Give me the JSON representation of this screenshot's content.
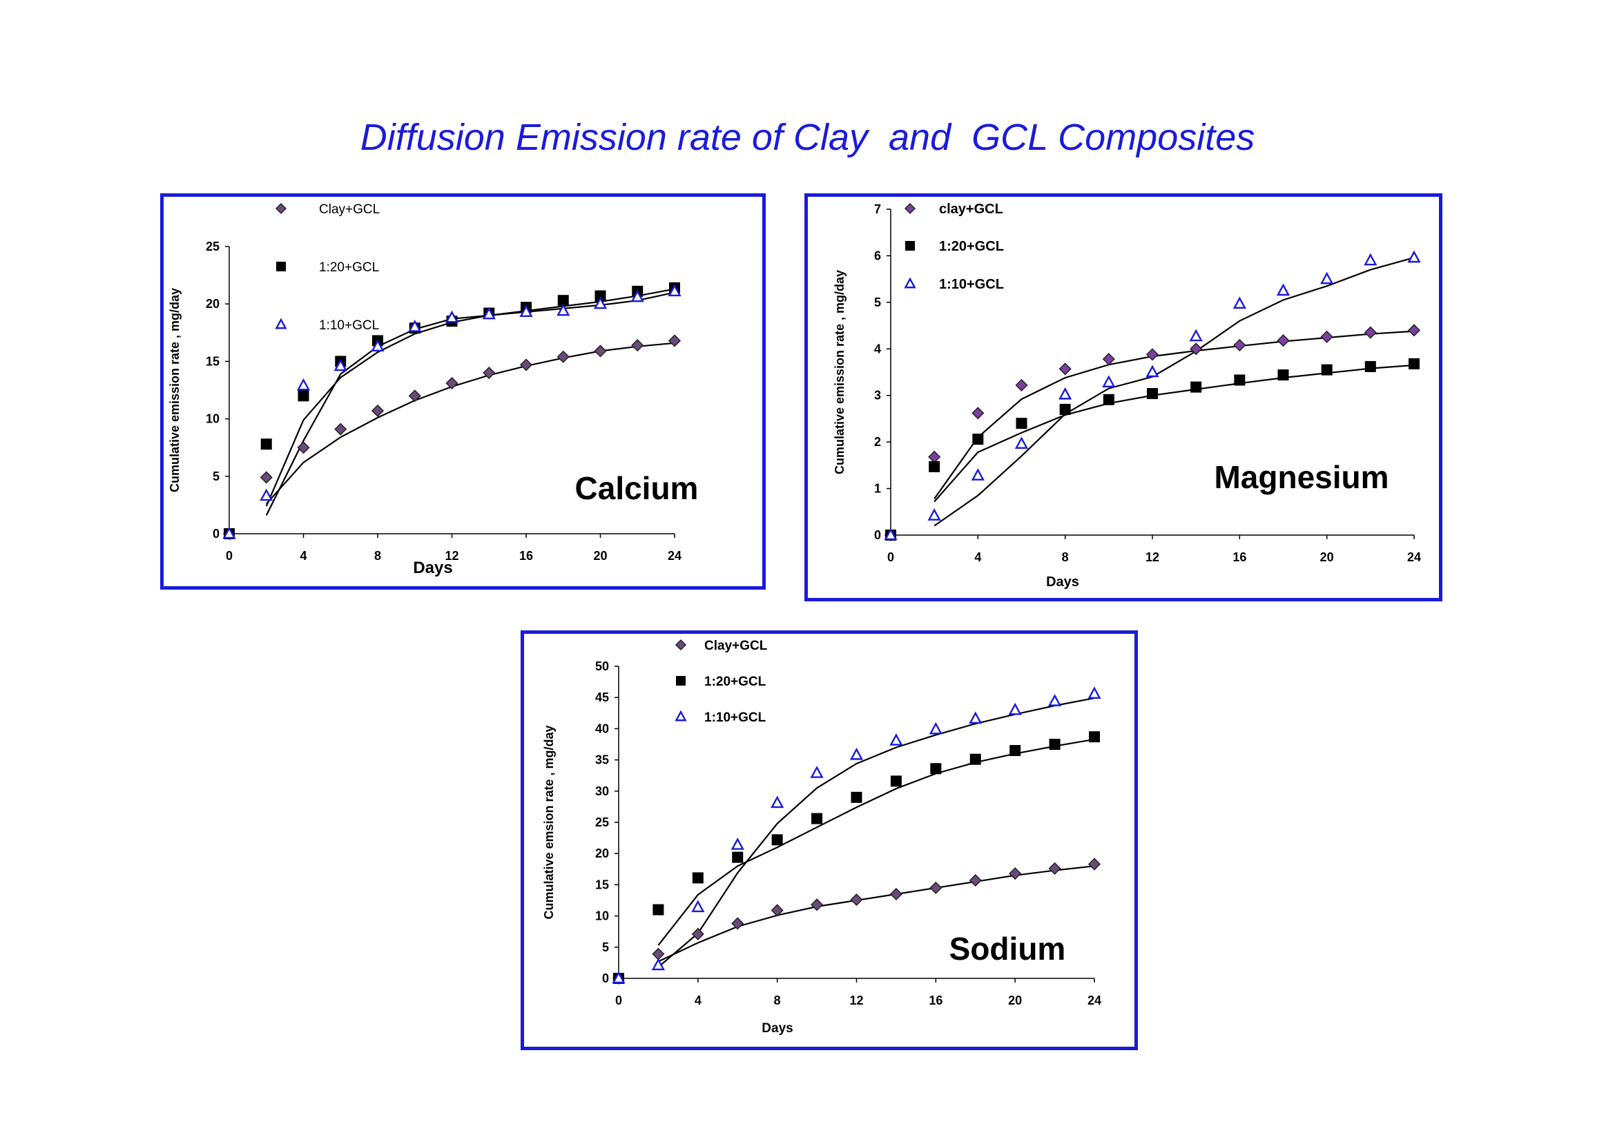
{
  "title": "Diffusion Emission rate of Clay  and  GCL Composites",
  "chart_data": [
    {
      "type": "scatter",
      "name": "Calcium",
      "xlabel": "Days",
      "ylabel": "Cumulative emission rate , mg/day",
      "xlim": [
        0,
        24
      ],
      "ylim": [
        0,
        25
      ],
      "xticks": [
        0,
        4,
        8,
        12,
        16,
        20,
        24
      ],
      "yticks": [
        0,
        5,
        10,
        15,
        20,
        25
      ],
      "legend": "top-left",
      "series": [
        {
          "name": "Clay+GCL",
          "marker": "diamond",
          "color": "#6a4a7a",
          "x": [
            0,
            2,
            4,
            6,
            8,
            10,
            12,
            14,
            16,
            18,
            20,
            22,
            24
          ],
          "y": [
            0,
            4.9,
            7.5,
            9.1,
            10.7,
            12.0,
            13.1,
            14.0,
            14.7,
            15.4,
            15.9,
            16.4,
            16.8
          ],
          "fit": [
            [
              2,
              2.6
            ],
            [
              4,
              6.2
            ],
            [
              6,
              8.4
            ],
            [
              8,
              10.1
            ],
            [
              10,
              11.6
            ],
            [
              12,
              12.8
            ],
            [
              14,
              13.8
            ],
            [
              16,
              14.6
            ],
            [
              18,
              15.3
            ],
            [
              20,
              15.9
            ],
            [
              22,
              16.3
            ],
            [
              24,
              16.6
            ]
          ]
        },
        {
          "name": "1:20+GCL",
          "marker": "square",
          "color": "#000000",
          "x": [
            0,
            2,
            4,
            6,
            8,
            10,
            12,
            14,
            16,
            18,
            20,
            22,
            24
          ],
          "y": [
            0,
            7.8,
            12.0,
            15.0,
            16.8,
            17.9,
            18.5,
            19.2,
            19.7,
            20.3,
            20.7,
            21.1,
            21.4
          ],
          "fit": [
            [
              2,
              2.4
            ],
            [
              4,
              9.9
            ],
            [
              6,
              13.6
            ],
            [
              8,
              15.8
            ],
            [
              10,
              17.4
            ],
            [
              12,
              18.4
            ],
            [
              14,
              19.0
            ],
            [
              16,
              19.4
            ],
            [
              18,
              19.8
            ],
            [
              20,
              20.2
            ],
            [
              22,
              20.7
            ],
            [
              24,
              21.3
            ]
          ]
        },
        {
          "name": "1:10+GCL",
          "marker": "triangle",
          "color": "#1a1adc",
          "x": [
            0,
            2,
            4,
            6,
            8,
            10,
            12,
            14,
            16,
            18,
            20,
            22,
            24
          ],
          "y": [
            0,
            3.3,
            12.9,
            14.6,
            16.3,
            18.0,
            18.8,
            19.1,
            19.3,
            19.4,
            20.0,
            20.6,
            21.1
          ],
          "fit": [
            [
              2,
              1.6
            ],
            [
              4,
              8.1
            ],
            [
              6,
              13.9
            ],
            [
              8,
              16.3
            ],
            [
              10,
              17.8
            ],
            [
              12,
              18.7
            ],
            [
              14,
              19.0
            ],
            [
              16,
              19.3
            ],
            [
              18,
              19.6
            ],
            [
              20,
              19.9
            ],
            [
              22,
              20.3
            ],
            [
              24,
              21.0
            ]
          ]
        }
      ]
    },
    {
      "type": "scatter",
      "name": "Magnesium",
      "xlabel": "Days",
      "ylabel": "Cumulative emission rate , mg/day",
      "xlim": [
        0,
        24
      ],
      "ylim": [
        0,
        7
      ],
      "xticks": [
        0,
        4,
        8,
        12,
        16,
        20,
        24
      ],
      "yticks": [
        0,
        1,
        2,
        3,
        4,
        5,
        6,
        7
      ],
      "legend": "top-left",
      "series": [
        {
          "name": "clay+GCL",
          "marker": "diamond",
          "color": "#7b3fa0",
          "x": [
            0,
            2,
            4,
            6,
            8,
            10,
            12,
            14,
            16,
            18,
            20,
            22,
            24
          ],
          "y": [
            0,
            1.68,
            2.62,
            3.22,
            3.57,
            3.78,
            3.88,
            4.0,
            4.08,
            4.18,
            4.26,
            4.35,
            4.4
          ],
          "fit": [
            [
              2,
              0.78
            ],
            [
              4,
              2.1
            ],
            [
              6,
              2.92
            ],
            [
              8,
              3.38
            ],
            [
              10,
              3.66
            ],
            [
              12,
              3.84
            ],
            [
              14,
              3.96
            ],
            [
              16,
              4.06
            ],
            [
              18,
              4.16
            ],
            [
              20,
              4.24
            ],
            [
              22,
              4.32
            ],
            [
              24,
              4.38
            ]
          ]
        },
        {
          "name": "1:20+GCL",
          "marker": "square",
          "color": "#000000",
          "x": [
            0,
            2,
            4,
            6,
            8,
            10,
            12,
            14,
            16,
            18,
            20,
            22,
            24
          ],
          "y": [
            0,
            1.47,
            2.06,
            2.4,
            2.7,
            2.91,
            3.04,
            3.18,
            3.33,
            3.44,
            3.55,
            3.62,
            3.68
          ],
          "fit": [
            [
              2,
              0.72
            ],
            [
              4,
              1.78
            ],
            [
              6,
              2.2
            ],
            [
              8,
              2.58
            ],
            [
              10,
              2.83
            ],
            [
              12,
              3.0
            ],
            [
              14,
              3.13
            ],
            [
              16,
              3.26
            ],
            [
              18,
              3.38
            ],
            [
              20,
              3.48
            ],
            [
              22,
              3.58
            ],
            [
              24,
              3.65
            ]
          ]
        },
        {
          "name": "1:10+GCL",
          "marker": "triangle",
          "color": "#1a1adc",
          "x": [
            0,
            2,
            4,
            6,
            8,
            10,
            12,
            14,
            16,
            18,
            20,
            22,
            24
          ],
          "y": [
            0,
            0.42,
            1.28,
            1.96,
            3.02,
            3.28,
            3.5,
            4.27,
            4.97,
            5.25,
            5.5,
            5.9,
            5.96
          ],
          "fit": [
            [
              2,
              0.2
            ],
            [
              4,
              0.85
            ],
            [
              6,
              1.7
            ],
            [
              8,
              2.6
            ],
            [
              10,
              3.15
            ],
            [
              12,
              3.4
            ],
            [
              14,
              3.95
            ],
            [
              16,
              4.6
            ],
            [
              18,
              5.05
            ],
            [
              20,
              5.35
            ],
            [
              22,
              5.7
            ],
            [
              24,
              5.96
            ]
          ]
        }
      ]
    },
    {
      "type": "scatter",
      "name": "Sodium",
      "xlabel": "Days",
      "ylabel": "Cumulative emsion rate , mg/day",
      "xlim": [
        0,
        24
      ],
      "ylim": [
        0,
        50
      ],
      "xticks": [
        0,
        4,
        8,
        12,
        16,
        20,
        24
      ],
      "yticks": [
        0,
        5,
        10,
        15,
        20,
        25,
        30,
        35,
        40,
        45,
        50
      ],
      "legend": "top-left",
      "series": [
        {
          "name": "Clay+GCL",
          "marker": "diamond",
          "color": "#6a4a7a",
          "x": [
            0,
            2,
            4,
            6,
            8,
            10,
            12,
            14,
            16,
            18,
            20,
            22,
            24
          ],
          "y": [
            0,
            3.9,
            7.1,
            8.8,
            10.9,
            11.8,
            12.6,
            13.5,
            14.5,
            15.7,
            16.8,
            17.6,
            18.3
          ],
          "fit": [
            [
              2,
              2.7
            ],
            [
              4,
              5.7
            ],
            [
              6,
              8.3
            ],
            [
              8,
              10.1
            ],
            [
              10,
              11.5
            ],
            [
              12,
              12.5
            ],
            [
              14,
              13.5
            ],
            [
              16,
              14.5
            ],
            [
              18,
              15.5
            ],
            [
              20,
              16.5
            ],
            [
              22,
              17.3
            ],
            [
              24,
              18.0
            ]
          ]
        },
        {
          "name": "1:20+GCL",
          "marker": "square",
          "color": "#000000",
          "x": [
            0,
            2,
            4,
            6,
            8,
            10,
            12,
            14,
            16,
            18,
            20,
            22,
            24
          ],
          "y": [
            0,
            11.0,
            16.1,
            19.4,
            22.2,
            25.6,
            29.0,
            31.6,
            33.6,
            35.1,
            36.5,
            37.5,
            38.7
          ],
          "fit": [
            [
              2,
              5.3
            ],
            [
              4,
              13.4
            ],
            [
              6,
              18.0
            ],
            [
              8,
              21.0
            ],
            [
              10,
              24.2
            ],
            [
              12,
              27.4
            ],
            [
              14,
              30.4
            ],
            [
              16,
              32.8
            ],
            [
              18,
              34.6
            ],
            [
              20,
              36.0
            ],
            [
              22,
              37.2
            ],
            [
              24,
              38.3
            ]
          ]
        },
        {
          "name": "1:10+GCL",
          "marker": "triangle",
          "color": "#1a1adc",
          "x": [
            0,
            2,
            4,
            6,
            8,
            10,
            12,
            14,
            16,
            18,
            20,
            22,
            24
          ],
          "y": [
            0,
            2.1,
            11.4,
            21.4,
            28.1,
            32.9,
            35.8,
            38.1,
            39.9,
            41.6,
            43.0,
            44.4,
            45.6
          ],
          "fit": [
            [
              2,
              1.8
            ],
            [
              4,
              7.2
            ],
            [
              6,
              16.9
            ],
            [
              8,
              24.8
            ],
            [
              10,
              30.5
            ],
            [
              12,
              34.4
            ],
            [
              14,
              37.0
            ],
            [
              16,
              39.0
            ],
            [
              18,
              40.8
            ],
            [
              20,
              42.3
            ],
            [
              22,
              43.7
            ],
            [
              24,
              44.9
            ]
          ]
        }
      ]
    }
  ]
}
